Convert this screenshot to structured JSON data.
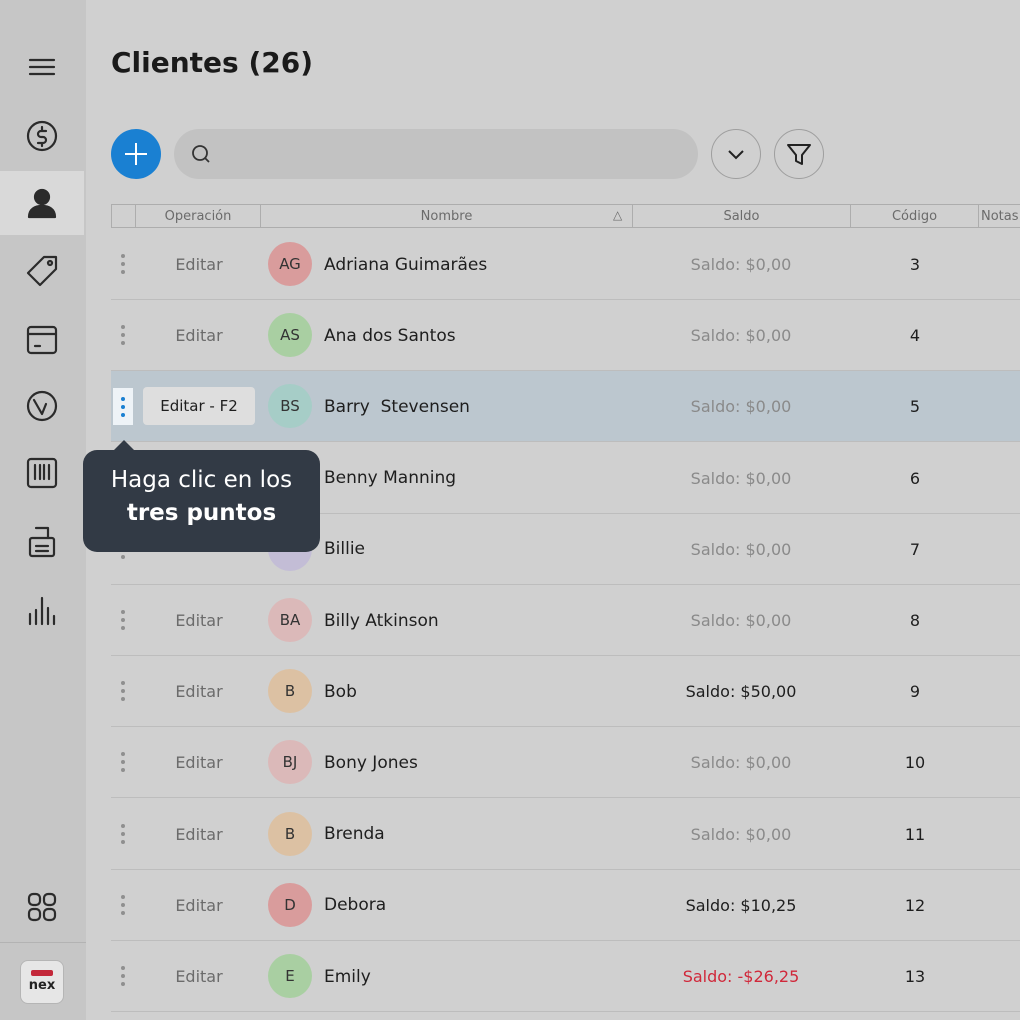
{
  "header": {
    "title": "Clientes (26)"
  },
  "sidebar": {
    "logo": "nex"
  },
  "table": {
    "columns": [
      "Operación",
      "Nombre",
      "Saldo",
      "Código",
      "Notas"
    ],
    "rows": [
      {
        "operation": "Editar",
        "initials": "AG",
        "avatar_color": "#d99c9c",
        "name": "Adriana Guimarães",
        "balance": "Saldo: $0,00",
        "balance_color": "#8a8a8a",
        "code": 3
      },
      {
        "operation": "Editar",
        "initials": "AS",
        "avatar_color": "#a9cfa2",
        "name": "Ana dos Santos",
        "balance": "Saldo: $0,00",
        "balance_color": "#8a8a8a",
        "code": 4
      },
      {
        "operation": "Editar - F2",
        "initials": "BS",
        "avatar_color": "#a6cdc7",
        "name": "Barry  Stevensen",
        "balance": "Saldo: $0,00",
        "balance_color": "#8a8a8a",
        "code": 5,
        "selected": true
      },
      {
        "name": "Benny Manning",
        "balance": "Saldo: $0,00",
        "balance_color": "#8a8a8a",
        "code": 6
      },
      {
        "avatar_color": "#c3bdd6",
        "name": "Billie",
        "balance": "Saldo: $0,00",
        "balance_color": "#8a8a8a",
        "code": 7
      },
      {
        "operation": "Editar",
        "initials": "BA",
        "avatar_color": "#dbb9b9",
        "name": "Billy Atkinson",
        "balance": "Saldo: $0,00",
        "balance_color": "#8a8a8a",
        "code": 8
      },
      {
        "operation": "Editar",
        "initials": "B",
        "avatar_color": "#dcc1a3",
        "name": "Bob",
        "balance": "Saldo: $50,00",
        "balance_color": "#1e1e1e",
        "code": 9
      },
      {
        "operation": "Editar",
        "initials": "BJ",
        "avatar_color": "#dbb9b9",
        "name": "Bony Jones",
        "balance": "Saldo: $0,00",
        "balance_color": "#8a8a8a",
        "code": 10
      },
      {
        "operation": "Editar",
        "initials": "B",
        "avatar_color": "#dcc1a3",
        "name": "Brenda",
        "balance": "Saldo: $0,00",
        "balance_color": "#8a8a8a",
        "code": 11
      },
      {
        "operation": "Editar",
        "initials": "D",
        "avatar_color": "#d99c9c",
        "name": "Debora",
        "balance": "Saldo: $10,25",
        "balance_color": "#1e1e1e",
        "code": 12
      },
      {
        "operation": "Editar",
        "initials": "E",
        "avatar_color": "#a9cfa2",
        "name": "Emily",
        "balance": "Saldo: -$26,25",
        "balance_color": "#d0283a",
        "code": 13
      }
    ]
  },
  "tooltip": {
    "line1": "Haga clic en los",
    "line2": "tres puntos"
  }
}
